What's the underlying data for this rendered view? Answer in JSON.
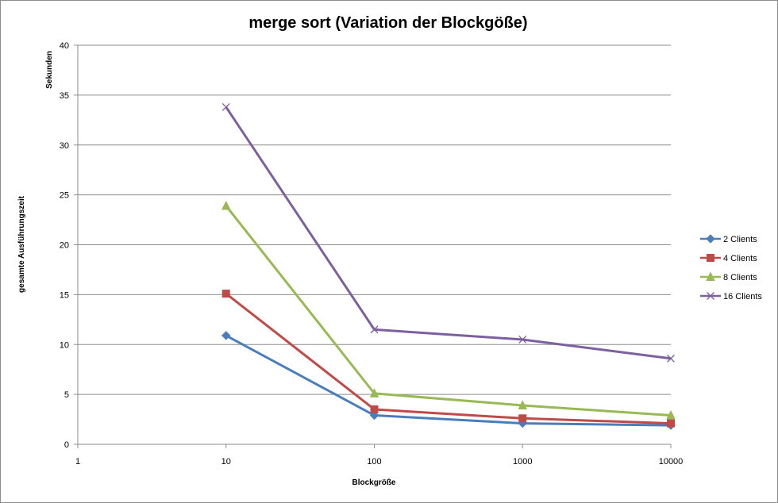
{
  "chart_data": {
    "type": "line",
    "title": "merge sort (Variation der Blockgöße)",
    "xlabel": "Blockgröße",
    "ylabel_top": "Sekunden",
    "ylabel": "gesamte Ausführungszeit",
    "x_scale": "log",
    "xlim": [
      1,
      10000
    ],
    "ylim": [
      0,
      40
    ],
    "x_ticks": [
      "1",
      "10",
      "100",
      "1000",
      "10000"
    ],
    "y_ticks": [
      "0",
      "5",
      "10",
      "15",
      "20",
      "25",
      "30",
      "35",
      "40"
    ],
    "grid": "horizontal",
    "legend_position": "right",
    "x": [
      10,
      100,
      1000,
      10000
    ],
    "series": [
      {
        "name": "2 Clients",
        "marker": "diamond",
        "color": "#4a7ebb",
        "values": [
          10.9,
          2.9,
          2.1,
          1.9
        ]
      },
      {
        "name": "4 Clients",
        "marker": "square",
        "color": "#be4b48",
        "values": [
          15.1,
          3.5,
          2.6,
          2.1
        ]
      },
      {
        "name": "8 Clients",
        "marker": "triangle",
        "color": "#98b954",
        "values": [
          23.9,
          5.1,
          3.9,
          2.9
        ]
      },
      {
        "name": "16 Clients",
        "marker": "x",
        "color": "#7d60a0",
        "values": [
          33.8,
          11.5,
          10.5,
          8.6
        ]
      }
    ]
  }
}
